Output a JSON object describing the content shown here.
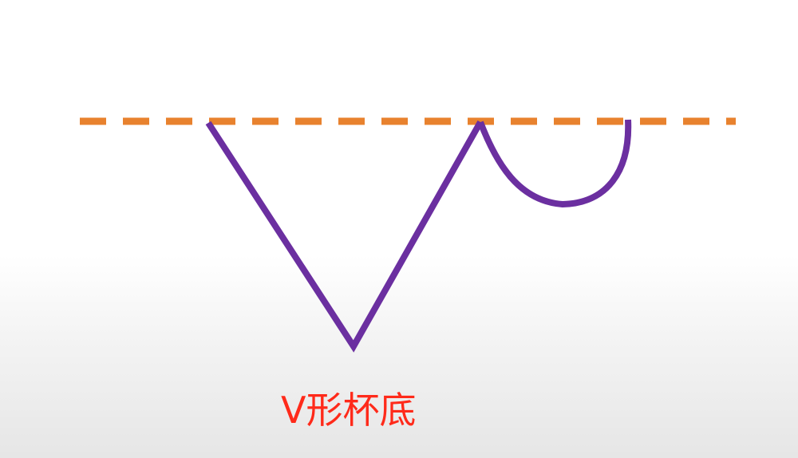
{
  "caption": "V形杯底",
  "colors": {
    "resistance_line": "#e8822e",
    "pattern_line": "#6b2fa0",
    "caption_text": "#ff2a1a"
  },
  "icons": {
    "resistance_line": "dashed-horizontal-line",
    "v_cup": "v-shape",
    "handle": "u-curve"
  }
}
